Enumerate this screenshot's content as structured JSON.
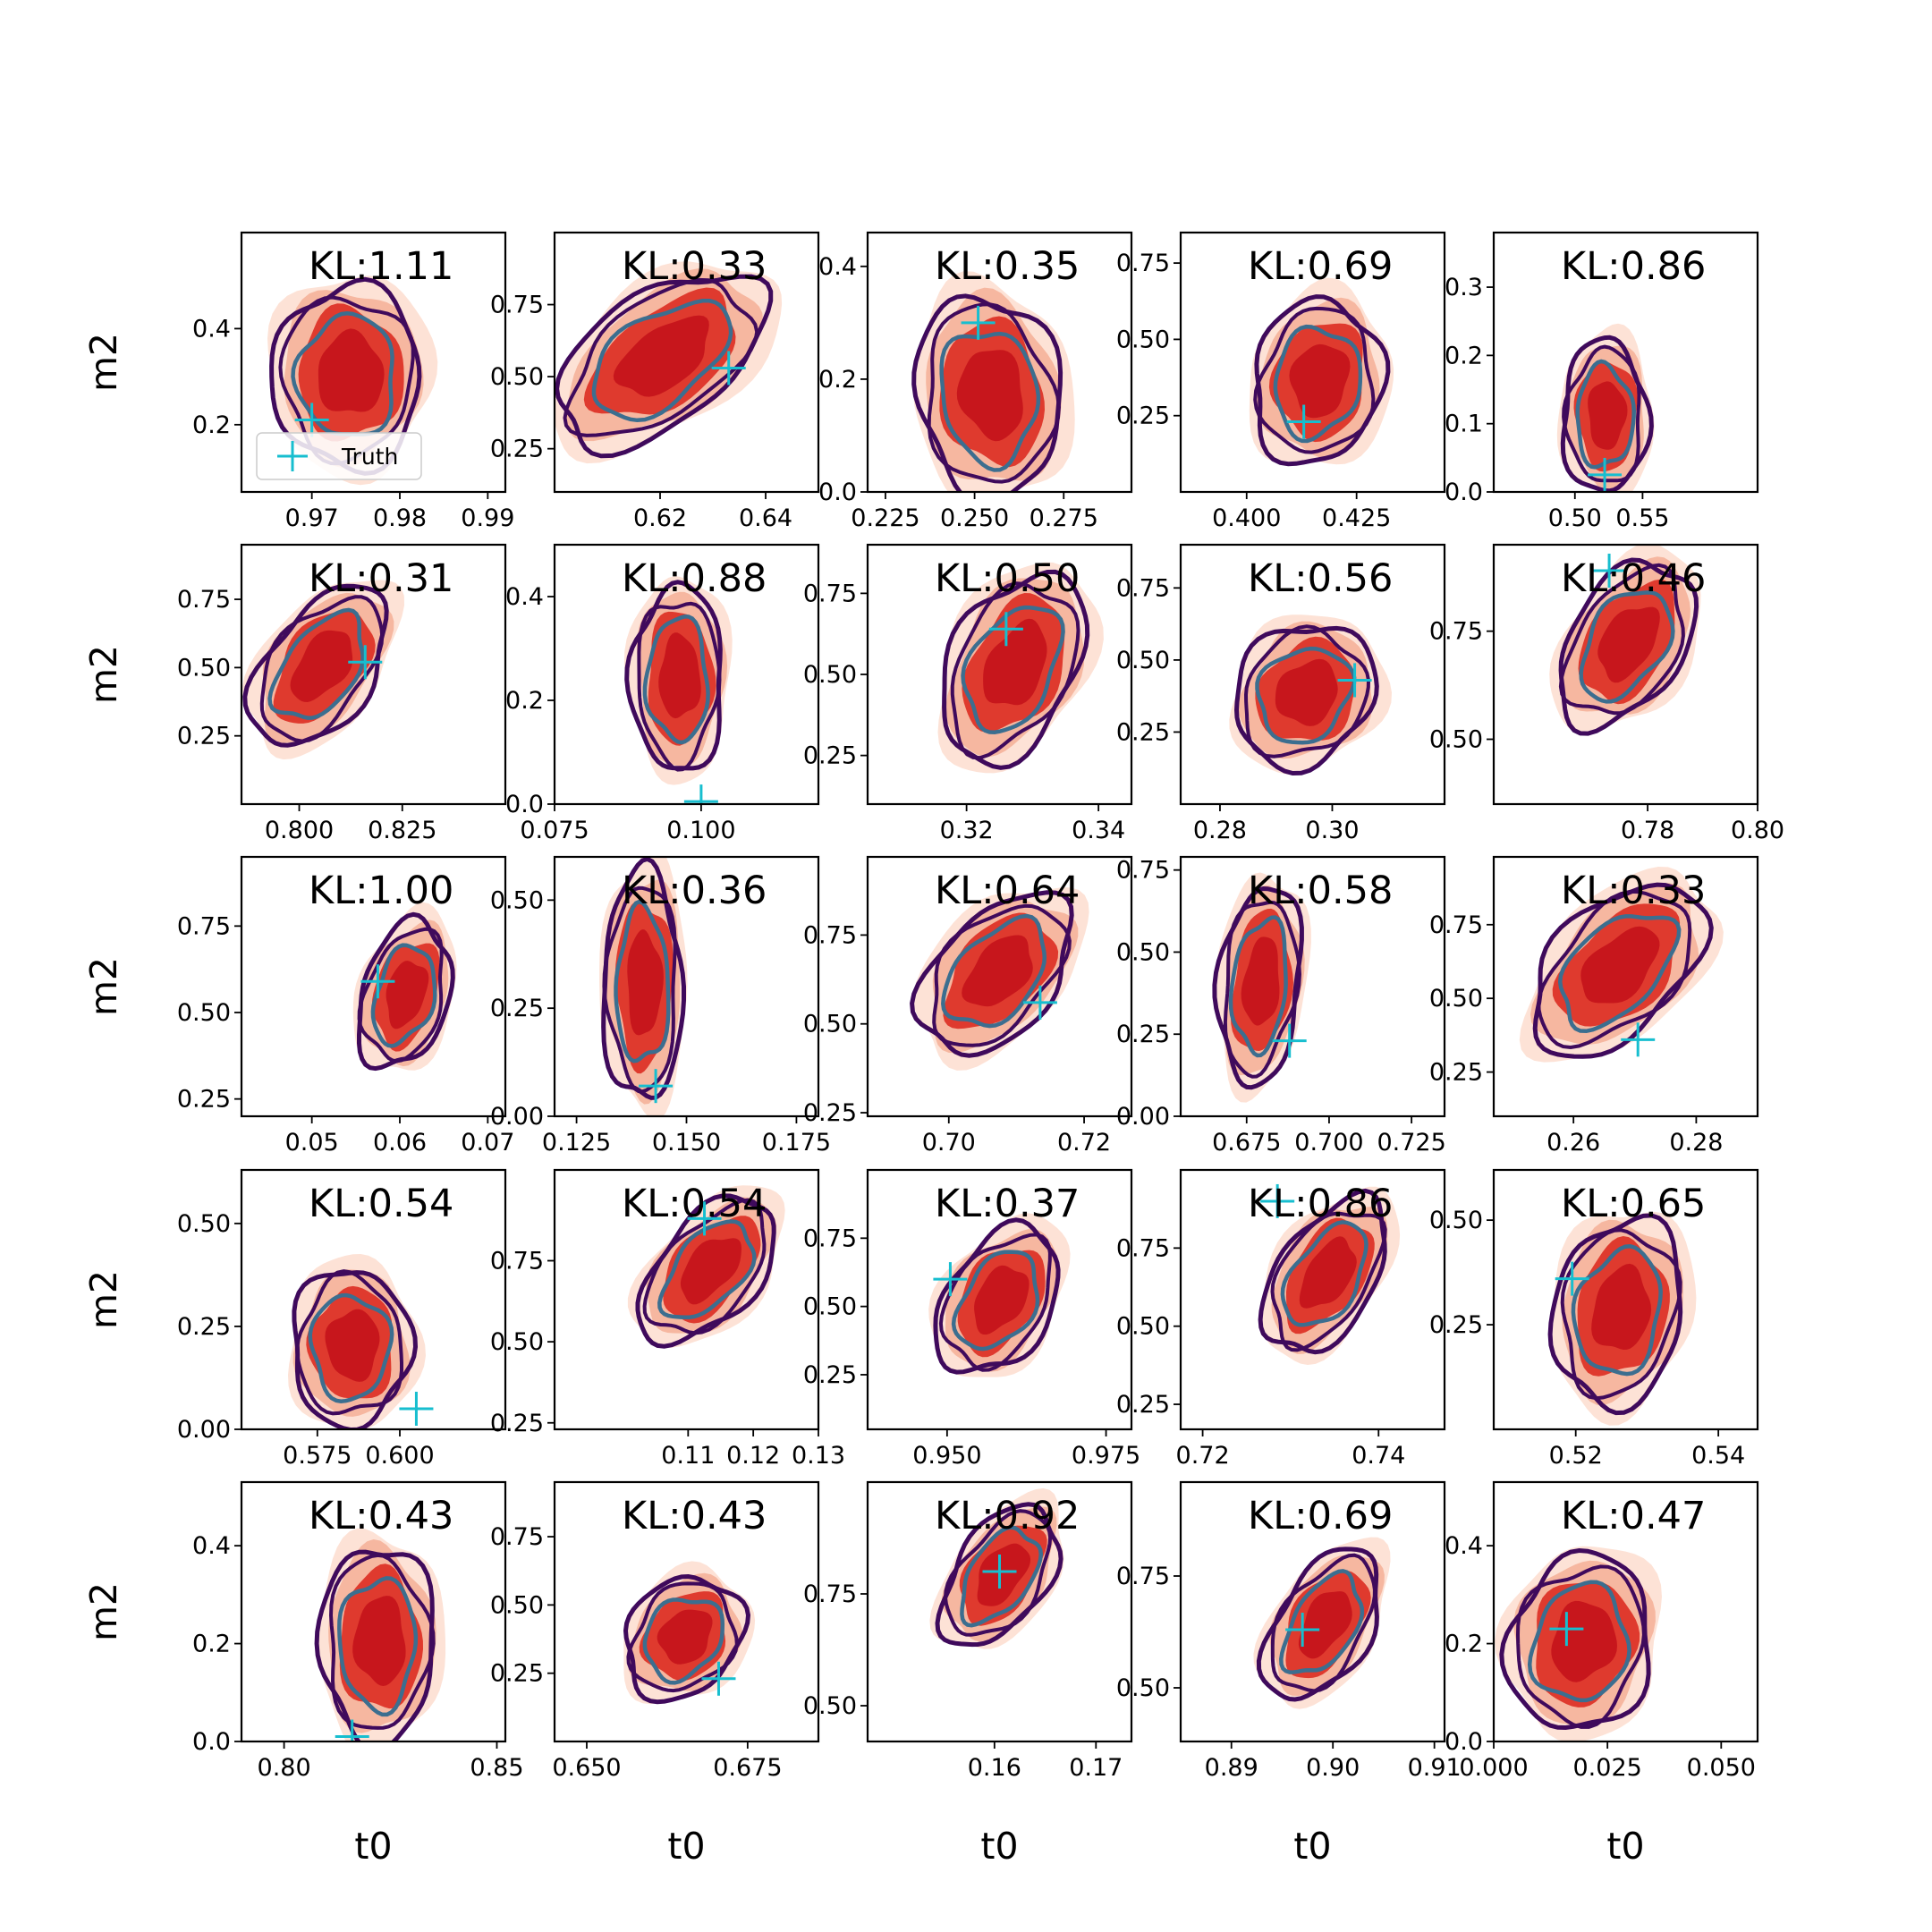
{
  "colors": {
    "fill_outer": "#fde2d6",
    "fill_mid": "#f6b7a0",
    "fill_inner": "#df3a2e",
    "fill_core": "#c7161c",
    "contour_outer": "#3f0a5c",
    "contour_inner": "#3c6e8f",
    "truth": "#17becf"
  },
  "labels": {
    "xlabel": "t0",
    "ylabel": "m2",
    "legend": "Truth"
  },
  "chart_data": {
    "type": "contour-grid",
    "rows": 5,
    "cols": 5,
    "xlabel": "t0",
    "ylabel": "m2",
    "legend": [
      "Truth"
    ],
    "panels": [
      {
        "kl": "KL:1.11",
        "xlim": [
          0.962,
          0.992
        ],
        "ylim": [
          0.06,
          0.6
        ],
        "xticks": [
          0.97,
          0.98,
          0.99
        ],
        "xtick_labels": [
          "0.97",
          "0.98",
          "0.99"
        ],
        "yticks": [
          0.2,
          0.4
        ],
        "ytick_labels": [
          "0.2",
          "0.4"
        ],
        "truth": [
          0.97,
          0.21
        ],
        "center": [
          0.974,
          0.3
        ],
        "rx": 0.0075,
        "ry": 0.17,
        "tilt": 0
      },
      {
        "kl": "KL:0.33",
        "xlim": [
          0.6,
          0.65
        ],
        "ylim": [
          0.1,
          1.0
        ],
        "xticks": [
          0.62,
          0.64
        ],
        "xtick_labels": [
          "0.62",
          "0.64"
        ],
        "yticks": [
          0.25,
          0.5,
          0.75
        ],
        "ytick_labels": [
          "0.25",
          "0.50",
          "0.75"
        ],
        "truth": [
          0.633,
          0.53
        ],
        "center": [
          0.62,
          0.56
        ],
        "rx": 0.015,
        "ry": 0.27,
        "tilt": -0.6
      },
      {
        "kl": "KL:0.35",
        "xlim": [
          0.22,
          0.294
        ],
        "ylim": [
          0.0,
          0.46
        ],
        "xticks": [
          0.225,
          0.25,
          0.275
        ],
        "xtick_labels": [
          "0.225",
          "0.250",
          "0.275"
        ],
        "yticks": [
          0.0,
          0.2,
          0.4
        ],
        "ytick_labels": [
          "0.0",
          "0.2",
          "0.4"
        ],
        "truth": [
          0.251,
          0.3
        ],
        "center": [
          0.254,
          0.17
        ],
        "rx": 0.018,
        "ry": 0.16,
        "tilt": 0.1
      },
      {
        "kl": "KL:0.69",
        "xlim": [
          0.385,
          0.445
        ],
        "ylim": [
          0.0,
          0.85
        ],
        "xticks": [
          0.4,
          0.425
        ],
        "xtick_labels": [
          "0.400",
          "0.425"
        ],
        "yticks": [
          0.25,
          0.5,
          0.75
        ],
        "ytick_labels": [
          "0.25",
          "0.50",
          "0.75"
        ],
        "truth": [
          0.413,
          0.23
        ],
        "center": [
          0.416,
          0.36
        ],
        "rx": 0.013,
        "ry": 0.24,
        "tilt": -0.1
      },
      {
        "kl": "KL:0.86",
        "xlim": [
          0.44,
          0.635
        ],
        "ylim": [
          0.0,
          0.38
        ],
        "xticks": [
          0.5,
          0.55
        ],
        "xtick_labels": [
          "0.50",
          "0.55"
        ],
        "yticks": [
          0.0,
          0.1,
          0.2,
          0.3
        ],
        "ytick_labels": [
          "0.0",
          "0.1",
          "0.2",
          "0.3"
        ],
        "truth": [
          0.522,
          0.025
        ],
        "center": [
          0.522,
          0.11
        ],
        "rx": 0.028,
        "ry": 0.1,
        "tilt": 0
      },
      {
        "kl": "KL:0.31",
        "xlim": [
          0.786,
          0.85
        ],
        "ylim": [
          0.0,
          0.95
        ],
        "xticks": [
          0.8,
          0.825
        ],
        "xtick_labels": [
          "0.800",
          "0.825"
        ],
        "yticks": [
          0.25,
          0.5,
          0.75
        ],
        "ytick_labels": [
          "0.25",
          "0.50",
          "0.75"
        ],
        "truth": [
          0.816,
          0.52
        ],
        "center": [
          0.805,
          0.5
        ],
        "rx": 0.013,
        "ry": 0.26,
        "tilt": -0.55
      },
      {
        "kl": "KL:0.88",
        "xlim": [
          0.075,
          0.12
        ],
        "ylim": [
          0.0,
          0.5
        ],
        "xticks": [
          0.075,
          0.1
        ],
        "xtick_labels": [
          "0.075",
          "0.100"
        ],
        "yticks": [
          0.0,
          0.2,
          0.4
        ],
        "ytick_labels": [
          "0.0",
          "0.2",
          "0.4"
        ],
        "truth": [
          0.1,
          0.005
        ],
        "center": [
          0.096,
          0.24
        ],
        "rx": 0.007,
        "ry": 0.16,
        "tilt": 0
      },
      {
        "kl": "KL:0.50",
        "xlim": [
          0.305,
          0.345
        ],
        "ylim": [
          0.1,
          0.9
        ],
        "xticks": [
          0.32,
          0.34
        ],
        "xtick_labels": [
          "0.32",
          "0.34"
        ],
        "yticks": [
          0.25,
          0.5,
          0.75
        ],
        "ytick_labels": [
          "0.25",
          "0.50",
          "0.75"
        ],
        "truth": [
          0.326,
          0.64
        ],
        "center": [
          0.327,
          0.52
        ],
        "rx": 0.009,
        "ry": 0.26,
        "tilt": -0.4
      },
      {
        "kl": "KL:0.56",
        "xlim": [
          0.273,
          0.32
        ],
        "ylim": [
          0.0,
          0.9
        ],
        "xticks": [
          0.28,
          0.3
        ],
        "xtick_labels": [
          "0.28",
          "0.30"
        ],
        "yticks": [
          0.25,
          0.5,
          0.75
        ],
        "ytick_labels": [
          "0.25",
          "0.50",
          "0.75"
        ],
        "truth": [
          0.304,
          0.43
        ],
        "center": [
          0.295,
          0.38
        ],
        "rx": 0.011,
        "ry": 0.22,
        "tilt": -0.15
      },
      {
        "kl": "KL:0.46",
        "xlim": [
          0.752,
          0.8
        ],
        "ylim": [
          0.35,
          0.95
        ],
        "xticks": [
          0.78,
          0.8
        ],
        "xtick_labels": [
          "0.78",
          "0.80"
        ],
        "yticks": [
          0.5,
          0.75
        ],
        "ytick_labels": [
          "0.50",
          "0.75"
        ],
        "truth": [
          0.773,
          0.89
        ],
        "center": [
          0.776,
          0.72
        ],
        "rx": 0.01,
        "ry": 0.17,
        "tilt": -0.45
      },
      {
        "kl": "KL:1.00",
        "xlim": [
          0.042,
          0.072
        ],
        "ylim": [
          0.2,
          0.95
        ],
        "xticks": [
          0.05,
          0.06,
          0.07
        ],
        "xtick_labels": [
          "0.05",
          "0.06",
          "0.07"
        ],
        "yticks": [
          0.25,
          0.5,
          0.75
        ],
        "ytick_labels": [
          "0.25",
          "0.50",
          "0.75"
        ],
        "truth": [
          0.0575,
          0.59
        ],
        "center": [
          0.0605,
          0.55
        ],
        "rx": 0.0045,
        "ry": 0.19,
        "tilt": -0.3
      },
      {
        "kl": "KL:0.36",
        "xlim": [
          0.12,
          0.18
        ],
        "ylim": [
          0.0,
          0.6
        ],
        "xticks": [
          0.125,
          0.15,
          0.175
        ],
        "xtick_labels": [
          "0.125",
          "0.150",
          "0.175"
        ],
        "yticks": [
          0.0,
          0.25,
          0.5
        ],
        "ytick_labels": [
          "0.00",
          "0.25",
          "0.50"
        ],
        "truth": [
          0.143,
          0.07
        ],
        "center": [
          0.14,
          0.3
        ],
        "rx": 0.008,
        "ry": 0.24,
        "tilt": 0
      },
      {
        "kl": "KL:0.64",
        "xlim": [
          0.688,
          0.727
        ],
        "ylim": [
          0.24,
          0.97
        ],
        "xticks": [
          0.7,
          0.72
        ],
        "xtick_labels": [
          "0.70",
          "0.72"
        ],
        "yticks": [
          0.25,
          0.5,
          0.75
        ],
        "ytick_labels": [
          "0.25",
          "0.50",
          "0.75"
        ],
        "truth": [
          0.7135,
          0.56
        ],
        "center": [
          0.707,
          0.64
        ],
        "rx": 0.009,
        "ry": 0.2,
        "tilt": -0.5
      },
      {
        "kl": "KL:0.58",
        "xlim": [
          0.655,
          0.735
        ],
        "ylim": [
          0.0,
          0.79
        ],
        "xticks": [
          0.675,
          0.7,
          0.725
        ],
        "xtick_labels": [
          "0.675",
          "0.700",
          "0.725"
        ],
        "yticks": [
          0.0,
          0.25,
          0.5,
          0.75
        ],
        "ytick_labels": [
          "0.00",
          "0.25",
          "0.50",
          "0.75"
        ],
        "truth": [
          0.688,
          0.23
        ],
        "center": [
          0.679,
          0.4
        ],
        "rx": 0.011,
        "ry": 0.27,
        "tilt": -0.2
      },
      {
        "kl": "KL:0.33",
        "xlim": [
          0.247,
          0.29
        ],
        "ylim": [
          0.1,
          0.98
        ],
        "xticks": [
          0.26,
          0.28
        ],
        "xtick_labels": [
          "0.26",
          "0.28"
        ],
        "yticks": [
          0.25,
          0.5,
          0.75
        ],
        "ytick_labels": [
          "0.25",
          "0.50",
          "0.75"
        ],
        "truth": [
          0.2705,
          0.36
        ],
        "center": [
          0.267,
          0.6
        ],
        "rx": 0.011,
        "ry": 0.26,
        "tilt": -0.55
      },
      {
        "kl": "KL:0.54",
        "xlim": [
          0.552,
          0.632
        ],
        "ylim": [
          0.0,
          0.63
        ],
        "xticks": [
          0.575,
          0.6
        ],
        "xtick_labels": [
          "0.575",
          "0.600"
        ],
        "yticks": [
          0.0,
          0.25,
          0.5
        ],
        "ytick_labels": [
          "0.00",
          "0.25",
          "0.50"
        ],
        "truth": [
          0.605,
          0.05
        ],
        "center": [
          0.585,
          0.2
        ],
        "rx": 0.016,
        "ry": 0.17,
        "tilt": 0
      },
      {
        "kl": "KL:0.54",
        "xlim": [
          0.0895,
          0.13
        ],
        "ylim": [
          0.23,
          1.03
        ],
        "xticks": [
          0.11,
          0.12,
          0.13
        ],
        "xtick_labels": [
          "0.11",
          "0.12",
          "0.13"
        ],
        "yticks": [
          0.25,
          0.5,
          0.75
        ],
        "ytick_labels": [
          "0.25",
          "0.50",
          "0.75"
        ],
        "truth": [
          0.1125,
          0.88
        ],
        "center": [
          0.113,
          0.72
        ],
        "rx": 0.008,
        "ry": 0.2,
        "tilt": -0.6
      },
      {
        "kl": "KL:0.37",
        "xlim": [
          0.9375,
          0.979
        ],
        "ylim": [
          0.05,
          1.0
        ],
        "xticks": [
          0.95,
          0.975
        ],
        "xtick_labels": [
          "0.950",
          "0.975"
        ],
        "yticks": [
          0.25,
          0.5,
          0.75
        ],
        "ytick_labels": [
          "0.25",
          "0.50",
          "0.75"
        ],
        "truth": [
          0.9505,
          0.6
        ],
        "center": [
          0.958,
          0.52
        ],
        "rx": 0.008,
        "ry": 0.24,
        "tilt": -0.4
      },
      {
        "kl": "KL:0.86",
        "xlim": [
          0.7175,
          0.7475
        ],
        "ylim": [
          0.17,
          1.0
        ],
        "xticks": [
          0.72,
          0.74
        ],
        "xtick_labels": [
          "0.72",
          "0.74"
        ],
        "yticks": [
          0.25,
          0.5,
          0.75
        ],
        "ytick_labels": [
          "0.25",
          "0.50",
          "0.75"
        ],
        "truth": [
          0.7285,
          0.9
        ],
        "center": [
          0.734,
          0.66
        ],
        "rx": 0.0055,
        "ry": 0.22,
        "tilt": -0.55
      },
      {
        "kl": "KL:0.65",
        "xlim": [
          0.5085,
          0.5455
        ],
        "ylim": [
          0.0,
          0.62
        ],
        "xticks": [
          0.52,
          0.54
        ],
        "xtick_labels": [
          "0.52",
          "0.54"
        ],
        "yticks": [
          0.25,
          0.5
        ],
        "ytick_labels": [
          "0.25",
          "0.50"
        ],
        "truth": [
          0.5195,
          0.36
        ],
        "center": [
          0.526,
          0.28
        ],
        "rx": 0.008,
        "ry": 0.2,
        "tilt": -0.15
      },
      {
        "kl": "KL:0.43",
        "xlim": [
          0.79,
          0.852
        ],
        "ylim": [
          0.0,
          0.53
        ],
        "xticks": [
          0.8,
          0.85
        ],
        "xtick_labels": [
          "0.80",
          "0.85"
        ],
        "yticks": [
          0.0,
          0.2,
          0.4
        ],
        "ytick_labels": [
          "0.0",
          "0.2",
          "0.4"
        ],
        "truth": [
          0.816,
          0.01
        ],
        "center": [
          0.822,
          0.2
        ],
        "rx": 0.012,
        "ry": 0.18,
        "tilt": 0
      },
      {
        "kl": "KL:0.43",
        "xlim": [
          0.645,
          0.686
        ],
        "ylim": [
          0.0,
          0.95
        ],
        "xticks": [
          0.65,
          0.675
        ],
        "xtick_labels": [
          "0.650",
          "0.675"
        ],
        "yticks": [
          0.25,
          0.5,
          0.75
        ],
        "ytick_labels": [
          "0.25",
          "0.50",
          "0.75"
        ],
        "truth": [
          0.6705,
          0.23
        ],
        "center": [
          0.665,
          0.38
        ],
        "rx": 0.008,
        "ry": 0.2,
        "tilt": -0.2
      },
      {
        "kl": "KL:0.92",
        "xlim": [
          0.1475,
          0.1735
        ],
        "ylim": [
          0.42,
          1.0
        ],
        "xticks": [
          0.16,
          0.17
        ],
        "xtick_labels": [
          "0.16",
          "0.17"
        ],
        "yticks": [
          0.5,
          0.75
        ],
        "ytick_labels": [
          "0.50",
          "0.75"
        ],
        "truth": [
          0.1605,
          0.8
        ],
        "center": [
          0.1605,
          0.79
        ],
        "rx": 0.0045,
        "ry": 0.14,
        "tilt": -0.55
      },
      {
        "kl": "KL:0.69",
        "xlim": [
          0.885,
          0.911
        ],
        "ylim": [
          0.38,
          0.96
        ],
        "xticks": [
          0.89,
          0.9,
          0.91
        ],
        "xtick_labels": [
          "0.89",
          "0.90",
          "0.91"
        ],
        "yticks": [
          0.5,
          0.75
        ],
        "ytick_labels": [
          "0.50",
          "0.75"
        ],
        "truth": [
          0.897,
          0.63
        ],
        "center": [
          0.899,
          0.64
        ],
        "rx": 0.0045,
        "ry": 0.15,
        "tilt": -0.55
      },
      {
        "kl": "KL:0.47",
        "xlim": [
          0.0,
          0.058
        ],
        "ylim": [
          0.0,
          0.53
        ],
        "xticks": [
          0.0,
          0.025,
          0.05
        ],
        "xtick_labels": [
          "0.000",
          "0.025",
          "0.050"
        ],
        "yticks": [
          0.0,
          0.2,
          0.4
        ],
        "ytick_labels": [
          "0.0",
          "0.2",
          "0.4"
        ],
        "truth": [
          0.016,
          0.23
        ],
        "center": [
          0.019,
          0.2
        ],
        "rx": 0.014,
        "ry": 0.16,
        "tilt": -0.1
      }
    ]
  }
}
